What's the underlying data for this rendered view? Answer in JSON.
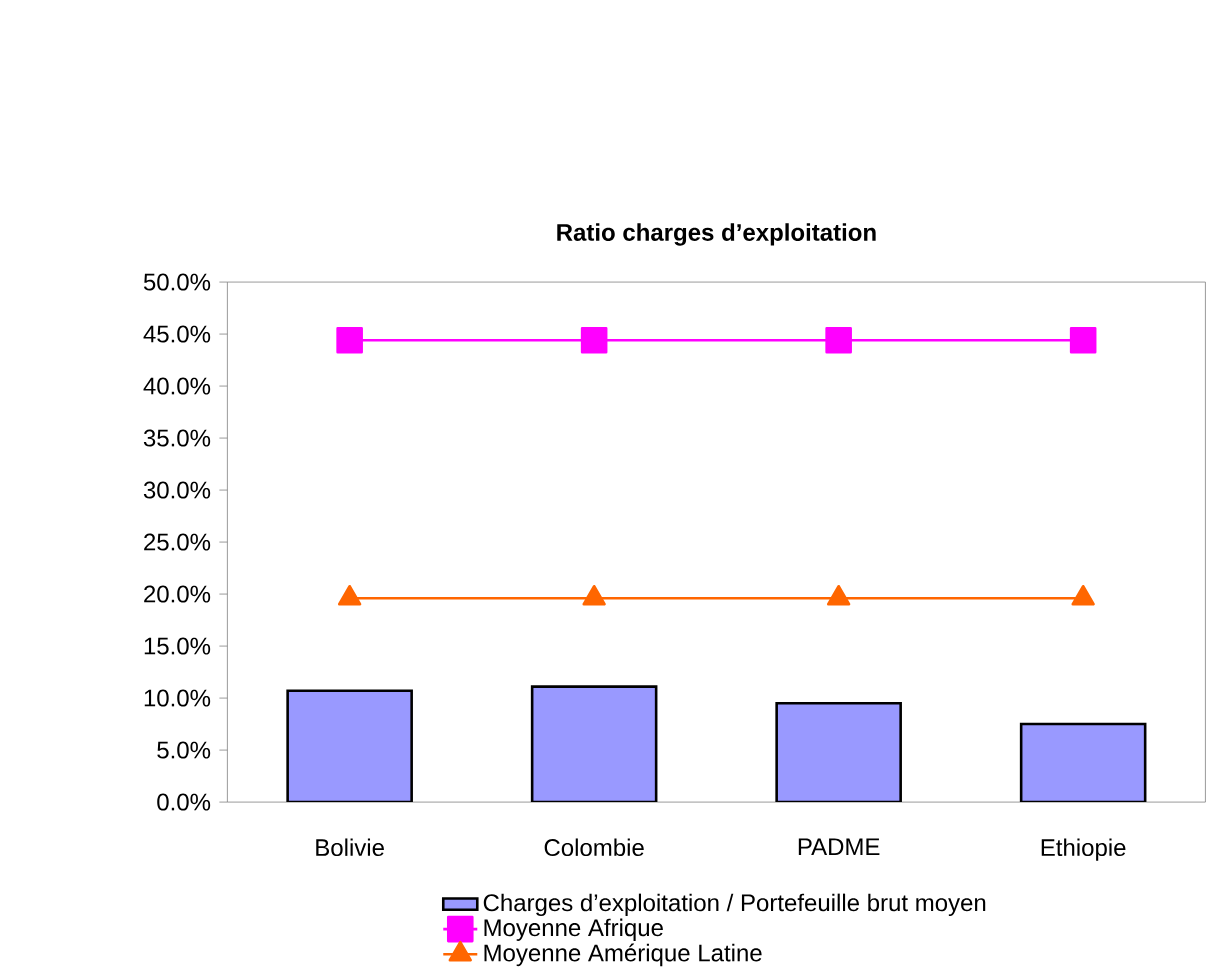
{
  "chart_data": {
    "type": "bar",
    "title": "Ratio charges d’exploitation",
    "categories": [
      "Bolivie",
      "Colombie",
      "PADME",
      "Ethiopie"
    ],
    "series": [
      {
        "name": "Charges d’exploitation / Portefeuille brut moyen",
        "color": "#9999ff",
        "values": [
          10.7,
          11.1,
          9.5,
          7.5
        ]
      },
      {
        "name": "Moyenne Afrique",
        "type": "line",
        "color": "#ff00ff",
        "marker": "square",
        "values": [
          44.4,
          44.4,
          44.4,
          44.4
        ]
      },
      {
        "name": "Moyenne Amérique Latine",
        "type": "line",
        "color": "#ff6600",
        "marker": "triangle",
        "values": [
          19.6,
          19.6,
          19.6,
          19.6
        ]
      }
    ],
    "ylim": [
      0,
      50
    ],
    "yticks": [
      {
        "value": 0,
        "label": "0.0%"
      },
      {
        "value": 5,
        "label": "5.0%"
      },
      {
        "value": 10,
        "label": "10.0%"
      },
      {
        "value": 15,
        "label": "15.0%"
      },
      {
        "value": 20,
        "label": "20.0%"
      },
      {
        "value": 25,
        "label": "25.0%"
      },
      {
        "value": 30,
        "label": "30.0%"
      },
      {
        "value": 35,
        "label": "35.0%"
      },
      {
        "value": 40,
        "label": "40.0%"
      },
      {
        "value": 45,
        "label": "45.0%"
      },
      {
        "value": 50,
        "label": "50.0%"
      }
    ],
    "legend": "bottom",
    "grid": false
  }
}
